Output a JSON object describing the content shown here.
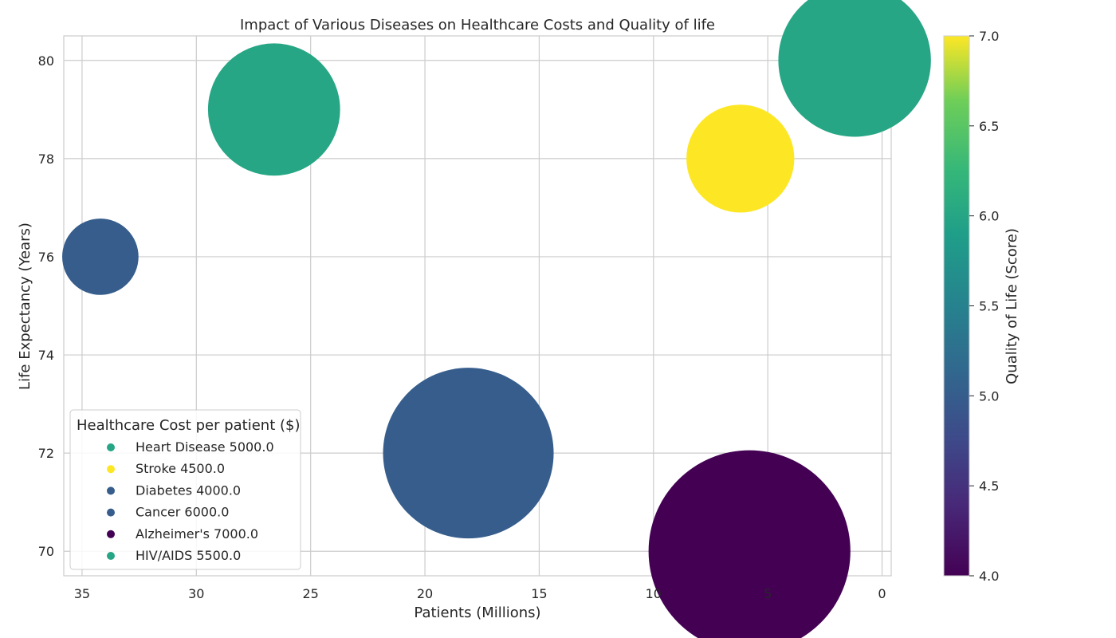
{
  "chart_data": {
    "type": "scatter",
    "title": "Impact of Various Diseases on Healthcare Costs and Quality of life",
    "xlabel": "Patients (Millions)",
    "ylabel": "Life Expectancy (Years)",
    "xlim": [
      35.8,
      -0.4
    ],
    "ylim": [
      69.5,
      80.5
    ],
    "x_inverted": true,
    "xticks": [
      35,
      30,
      25,
      20,
      15,
      10,
      5,
      0
    ],
    "yticks": [
      70,
      72,
      74,
      76,
      78,
      80
    ],
    "grid": true,
    "legend_title": "Healthcare Cost per patient ($)",
    "legend_position": "lower-left",
    "size_by": "Healthcare Cost per patient ($)",
    "color_by": "Quality of Life (Score)",
    "points": [
      {
        "label": "Heart Disease 5000.0",
        "x": 26.6,
        "y": 79,
        "cost": 5000,
        "quality": 6
      },
      {
        "label": "Stroke 4500.0",
        "x": 6.2,
        "y": 78,
        "cost": 4500,
        "quality": 7
      },
      {
        "label": "Diabetes 4000.0",
        "x": 34.2,
        "y": 76,
        "cost": 4000,
        "quality": 5
      },
      {
        "label": "Cancer 6000.0",
        "x": 18.1,
        "y": 72,
        "cost": 6000,
        "quality": 5
      },
      {
        "label": "Alzheimer's 7000.0",
        "x": 5.8,
        "y": 70,
        "cost": 7000,
        "quality": 4
      },
      {
        "label": "HIV/AIDS 5500.0",
        "x": 1.2,
        "y": 80,
        "cost": 5500,
        "quality": 6
      }
    ],
    "colorbar": {
      "label": "Quality of Life (Score)",
      "min": 4.0,
      "max": 7.0,
      "ticks": [
        "4.0",
        "4.5",
        "5.0",
        "5.5",
        "6.0",
        "6.5",
        "7.0"
      ],
      "colormap": "viridis"
    }
  }
}
